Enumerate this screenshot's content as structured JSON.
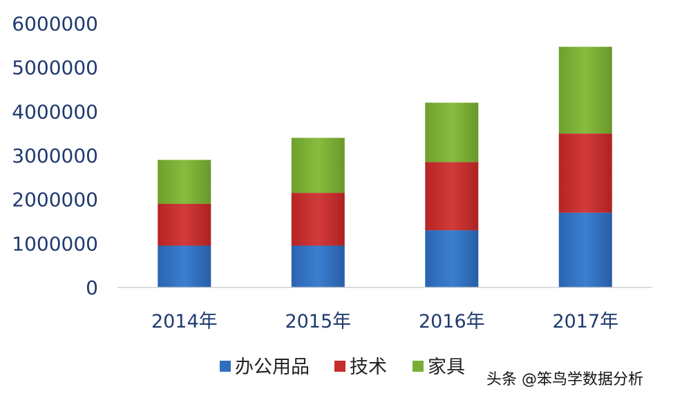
{
  "chart_data": {
    "type": "bar",
    "stacked": true,
    "categories": [
      "2014年",
      "2015年",
      "2016年",
      "2017年"
    ],
    "series": [
      {
        "name": "办公用品",
        "values": [
          950000,
          950000,
          1300000,
          1700000
        ],
        "color": "#2f6fbe"
      },
      {
        "name": "技术",
        "values": [
          950000,
          1200000,
          1550000,
          1800000
        ],
        "color": "#c62d2d"
      },
      {
        "name": "家具",
        "values": [
          1000000,
          1250000,
          1350000,
          1970000
        ],
        "color": "#7aaf35"
      }
    ],
    "yticks": [
      "0",
      "1000000",
      "2000000",
      "3000000",
      "4000000",
      "5000000",
      "6000000"
    ],
    "ylim": [
      0,
      6000000
    ],
    "grid": false,
    "legend_position": "bottom"
  },
  "watermark": "头条 @笨鸟学数据分析"
}
